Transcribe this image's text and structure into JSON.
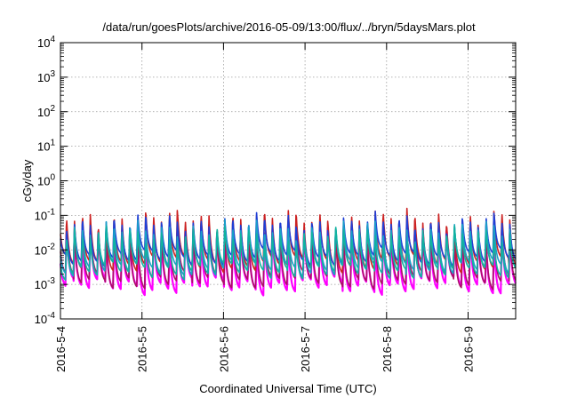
{
  "chart_data": {
    "type": "line",
    "title": "/data/run/goesPlots/archive/2016-05-09/13:00/flux/../bryn/5daysMars.plot",
    "xlabel": "Coordinated Universal Time (UTC)",
    "ylabel": "cGy/day",
    "yscale": "log",
    "ylim": [
      0.0001,
      10000
    ],
    "xlim": [
      "2016-05-04T00:00",
      "2016-05-09T14:00"
    ],
    "xticks": [
      "2016-5-4",
      "2016-5-5",
      "2016-5-6",
      "2016-5-7",
      "2016-5-8",
      "2016-5-9"
    ],
    "yticks": [
      {
        "value": 0.0001,
        "mantissa": "10",
        "exponent": "-4"
      },
      {
        "value": 0.001,
        "mantissa": "10",
        "exponent": "-3"
      },
      {
        "value": 0.01,
        "mantissa": "10",
        "exponent": "-2"
      },
      {
        "value": 0.1,
        "mantissa": "10",
        "exponent": "-1"
      },
      {
        "value": 1,
        "mantissa": "10",
        "exponent": "0"
      },
      {
        "value": 10,
        "mantissa": "10",
        "exponent": "1"
      },
      {
        "value": 100,
        "mantissa": "10",
        "exponent": "2"
      },
      {
        "value": 1000,
        "mantissa": "10",
        "exponent": "3"
      },
      {
        "value": 10000,
        "mantissa": "10",
        "exponent": "4"
      }
    ],
    "grid": true,
    "legend": "none",
    "cycle_hours": 2.33,
    "series": [
      {
        "color": "#ff00ff",
        "peak": 0.03,
        "trough": 0.0009
      },
      {
        "color": "#aa1166",
        "peak": 0.035,
        "trough": 0.0013
      },
      {
        "color": "#cc2222",
        "peak": 0.095,
        "trough": 0.004
      },
      {
        "color": "#1f3fd6",
        "peak": 0.07,
        "trough": 0.006
      },
      {
        "color": "#1aa0c8",
        "peak": 0.045,
        "trough": 0.003
      },
      {
        "color": "#11b3a0",
        "peak": 0.03,
        "trough": 0.0025
      }
    ]
  }
}
